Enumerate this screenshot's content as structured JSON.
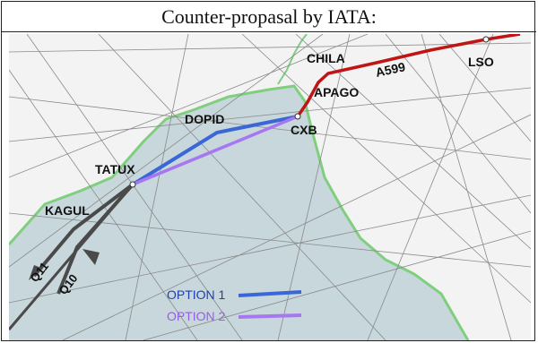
{
  "title": "Counter-propasal by IATA:",
  "colors": {
    "land": "#f3f3f3",
    "sea": "#c7d7dc",
    "coast": "#7fcf7f",
    "route_existing": "#c01515",
    "option1": "#3b66d6",
    "option2": "#a777f2",
    "route_grey": "#4a4a4a"
  },
  "waypoints": {
    "chila": "CHILA",
    "apago": "APAGO",
    "lso": "LSO",
    "dopid": "DOPID",
    "cxb": "CXB",
    "tatux": "TATUX",
    "kagul": "KAGUL"
  },
  "airways": {
    "a599": "A599",
    "q11": "Q11",
    "q10": "Q10"
  },
  "legend": {
    "option1": "OPTION 1",
    "option2": "OPTION 2"
  }
}
